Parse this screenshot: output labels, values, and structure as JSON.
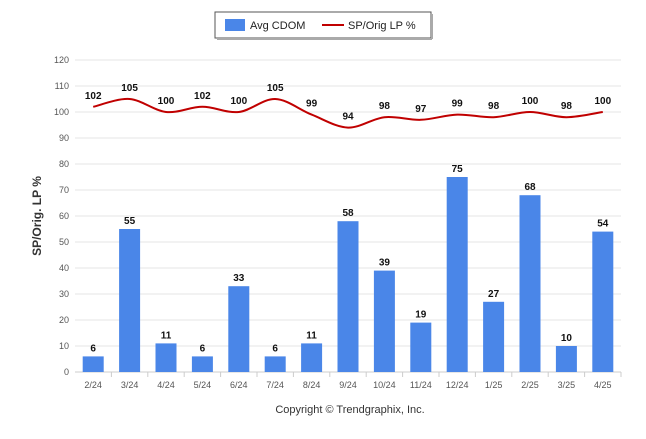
{
  "chart_data": {
    "type": "bar",
    "categories": [
      "2/24",
      "3/24",
      "4/24",
      "5/24",
      "6/24",
      "7/24",
      "8/24",
      "9/24",
      "10/24",
      "11/24",
      "12/24",
      "1/25",
      "2/25",
      "3/25",
      "4/25"
    ],
    "series": [
      {
        "name": "Avg CDOM",
        "type": "bar",
        "color": "#4a86e8",
        "values": [
          6,
          55,
          11,
          6,
          33,
          6,
          11,
          58,
          39,
          19,
          75,
          27,
          68,
          10,
          54
        ]
      },
      {
        "name": "SP/Orig LP %",
        "type": "line",
        "color": "#c00000",
        "values": [
          102,
          105,
          100,
          102,
          100,
          105,
          99,
          94,
          98,
          97,
          99,
          98,
          100,
          98,
          100
        ]
      }
    ],
    "title": "",
    "xlabel": "",
    "ylabel": "SP/Orig. LP %",
    "ylim": [
      0,
      120
    ],
    "yticks": [
      0,
      10,
      20,
      30,
      40,
      50,
      60,
      70,
      80,
      90,
      100,
      110,
      120
    ],
    "grid": true,
    "legend": "top-center"
  },
  "footer": {
    "copyright": "Copyright © Trendgraphix, Inc."
  }
}
